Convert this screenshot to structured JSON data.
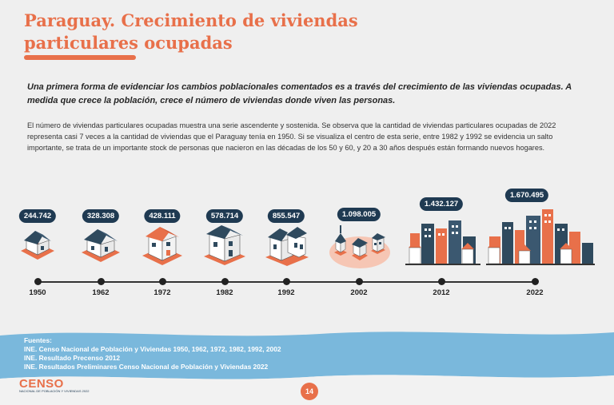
{
  "title": "Paraguay. Crecimiento de viviendas particulares ocupadas",
  "intro": "Una primera forma de evidenciar los cambios poblacionales comentados es a través del crecimiento de las viviendas ocupadas. A medida que crece la población, crece el número de viviendas donde viven las personas.",
  "body": "El número de viviendas particulares ocupadas muestra una serie ascendente y sostenida. Se observa que la cantidad de viviendas particulares ocupadas de 2022 representa casi 7 veces a la cantidad de viviendas que el Paraguay tenía en 1950. Si se visualiza el centro de esta serie, entre 1982 y 1992 se evidencia un salto importante, se trata de un importante stock de personas que nacieron en las décadas de los 50 y 60, y 20 a 30 años después están formando nuevos hogares.",
  "timeline": [
    {
      "year": "1950",
      "value": "244.742"
    },
    {
      "year": "1962",
      "value": "328.308"
    },
    {
      "year": "1972",
      "value": "428.111"
    },
    {
      "year": "1982",
      "value": "578.714"
    },
    {
      "year": "1992",
      "value": "855.547"
    },
    {
      "year": "2002",
      "value": "1.098.005"
    },
    {
      "year": "2012",
      "value": "1.432.127"
    },
    {
      "year": "2022",
      "value": "1.670.495"
    }
  ],
  "sources": {
    "label": "Fuentes:",
    "items": [
      "INE. Censo Nacional de Población y Viviendas 1950, 1962, 1972, 1982, 1992, 2002",
      "INE. Resultado Precenso 2012",
      "INE. Resultados Preliminares Censo Nacional de Población y Viviendas 2022"
    ]
  },
  "logo_text": "CENSO",
  "logo_subtext": "NACIONAL DE POBLACIÓN Y VIVIENDAS 2022",
  "page_number": "14",
  "colors": {
    "accent": "#e8704a",
    "navy": "#1f3a52",
    "wave": "#7ab8dc"
  }
}
